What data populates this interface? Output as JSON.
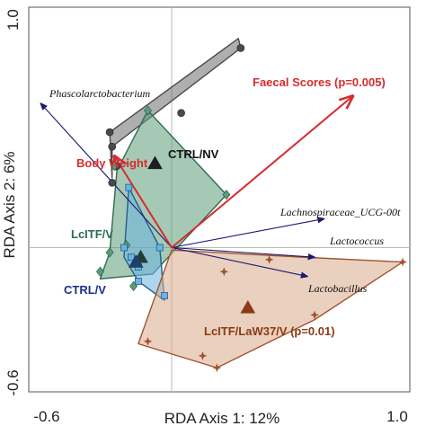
{
  "chart_data": {
    "type": "scatter",
    "subtype": "rda-triplot",
    "xlabel": "RDA Axis 1: 12%",
    "ylabel": "RDA Axis 2: 6%",
    "xlim": [
      -0.6,
      1.0
    ],
    "ylim": [
      -0.6,
      1.0
    ],
    "x_ticks": [
      "-0.6",
      "1.0"
    ],
    "y_ticks": [
      "1.0",
      "-0.6"
    ],
    "zero_lines": true,
    "groups": [
      {
        "name": "CTRL/NV",
        "label": "CTRL/NV",
        "color": "#4a4a4a",
        "fill": "#6e6e6e",
        "marker": "circle",
        "points": [
          [
            -0.26,
            0.48
          ],
          [
            -0.25,
            0.27
          ],
          [
            0.04,
            0.56
          ],
          [
            0.29,
            0.83
          ],
          [
            -0.23,
            0.34
          ],
          [
            -0.25,
            0.42
          ]
        ],
        "hull": [
          [
            -0.25,
            0.42
          ],
          [
            0.29,
            0.83
          ],
          [
            0.28,
            0.87
          ],
          [
            -0.26,
            0.48
          ],
          [
            -0.25,
            0.29
          ]
        ],
        "centroid": [
          -0.07,
          0.35
        ]
      },
      {
        "name": "LcITF/V",
        "label": "LcITF/V",
        "color": "#2e6b52",
        "fill": "#5c9c7a",
        "marker": "diamond",
        "points": [
          [
            -0.1,
            0.57
          ],
          [
            0.23,
            0.22
          ],
          [
            -0.24,
            0.34
          ],
          [
            -0.3,
            -0.1
          ],
          [
            -0.26,
            -0.02
          ],
          [
            -0.16,
            -0.16
          ],
          [
            -0.19,
            0.01
          ]
        ],
        "hull": [
          [
            -0.1,
            0.57
          ],
          [
            0.23,
            0.22
          ],
          [
            -0.08,
            -0.11
          ],
          [
            -0.3,
            -0.13
          ],
          [
            -0.26,
            -0.02
          ],
          [
            -0.23,
            0.32
          ]
        ],
        "centroid": [
          -0.13,
          -0.04
        ]
      },
      {
        "name": "CTRL/V",
        "label": "CTRL/V",
        "color": "#1f5f8f",
        "fill": "#6bb3e0",
        "marker": "square",
        "points": [
          [
            -0.18,
            0.25
          ],
          [
            -0.05,
            0.0
          ],
          [
            -0.14,
            -0.08
          ],
          [
            -0.17,
            -0.04
          ],
          [
            -0.14,
            -0.14
          ],
          [
            -0.03,
            -0.2
          ],
          [
            -0.2,
            0.0
          ]
        ],
        "hull": [
          [
            -0.18,
            0.25
          ],
          [
            -0.05,
            0.0
          ],
          [
            -0.03,
            -0.22
          ],
          [
            -0.14,
            -0.14
          ],
          [
            -0.2,
            -0.04
          ]
        ],
        "centroid": [
          -0.15,
          -0.06
        ]
      },
      {
        "name": "LcITF/LaW37/V",
        "label": "LcITF/LaW37/V (p=0.01)",
        "color": "#a0522d",
        "fill": "#d9a98a",
        "marker": "star",
        "points": [
          [
            0.97,
            -0.06
          ],
          [
            0.41,
            -0.05
          ],
          [
            0.22,
            -0.1
          ],
          [
            0.6,
            -0.28
          ],
          [
            0.19,
            -0.5
          ],
          [
            0.13,
            -0.45
          ],
          [
            -0.1,
            -0.39
          ]
        ],
        "hull": [
          [
            0.97,
            -0.06
          ],
          [
            0.55,
            -0.04
          ],
          [
            0.0,
            -0.01
          ],
          [
            -0.14,
            -0.4
          ],
          [
            0.19,
            -0.5
          ],
          [
            0.6,
            -0.3
          ]
        ],
        "centroid": [
          0.32,
          -0.25
        ]
      }
    ],
    "env_vectors": [
      {
        "name": "Faecal Scores (p=0.005)",
        "x": 0.76,
        "y": 0.63,
        "color": "#d62c2c"
      },
      {
        "name": "Body Weight",
        "x": -0.24,
        "y": 0.38,
        "color": "#d62c2c"
      }
    ],
    "species_vectors": [
      {
        "name": "Phascolarctobacterium",
        "x": -0.55,
        "y": 0.6,
        "color": "#1a1a6e"
      },
      {
        "name": "Lachnospiraceae_UCG-00t",
        "x": 0.64,
        "y": 0.12,
        "color": "#1a1a6e"
      },
      {
        "name": "Lactococcus",
        "x": 0.6,
        "y": -0.04,
        "color": "#1a1a6e"
      },
      {
        "name": "Lactobacillus",
        "x": 0.57,
        "y": -0.12,
        "color": "#1a1a6e"
      }
    ]
  }
}
